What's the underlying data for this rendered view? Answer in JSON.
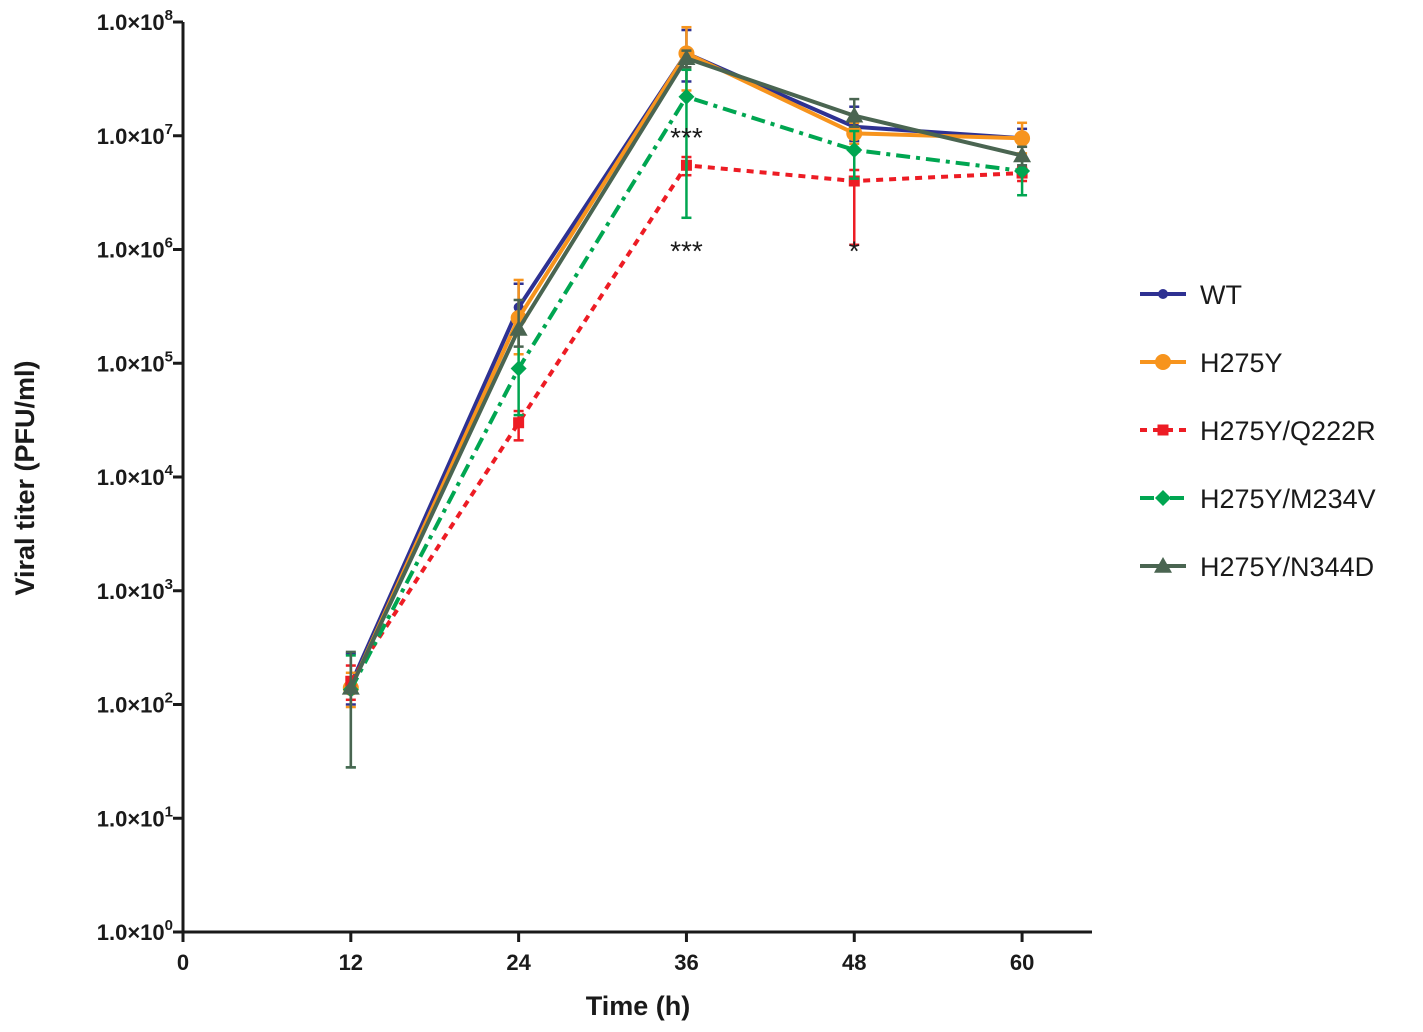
{
  "chart_data": {
    "type": "line",
    "xlabel": "Time (h)",
    "ylabel": "Viral titer (PFU/ml)",
    "x_ticks": [
      0,
      12,
      24,
      36,
      48,
      60
    ],
    "xlim": [
      0,
      65
    ],
    "y_scale": "log",
    "ylim": [
      1,
      100000000
    ],
    "y_ticks": [
      {
        "base": "1.0×10",
        "exp": "0"
      },
      {
        "base": "1.0×10",
        "exp": "1"
      },
      {
        "base": "1.0×10",
        "exp": "2"
      },
      {
        "base": "1.0×10",
        "exp": "3"
      },
      {
        "base": "1.0×10",
        "exp": "4"
      },
      {
        "base": "1.0×10",
        "exp": "5"
      },
      {
        "base": "1.0×10",
        "exp": "6"
      },
      {
        "base": "1.0×10",
        "exp": "7"
      },
      {
        "base": "1.0×10",
        "exp": "8"
      }
    ],
    "grid": false,
    "legend_position": "right",
    "x": [
      12,
      24,
      36,
      48,
      60
    ],
    "series": [
      {
        "name": "WT",
        "color": "#2e3192",
        "dash": "solid",
        "marker": "circle-small",
        "values": [
          150,
          310000,
          53000000,
          12000000,
          9500000
        ],
        "err_high": [
          280,
          500000,
          85000000,
          18000000,
          11500000
        ],
        "err_low": [
          100,
          180000,
          30000000,
          9000000,
          8000000
        ]
      },
      {
        "name": "H275Y",
        "color": "#f7941d",
        "dash": "solid",
        "marker": "circle",
        "values": [
          140,
          250000,
          53000000,
          10500000,
          9500000
        ],
        "err_high": [
          190,
          540000,
          90000000,
          13000000,
          13000000
        ],
        "err_low": [
          95,
          120000,
          25000000,
          8500000,
          7000000
        ]
      },
      {
        "name": "H275Y/Q222R",
        "color": "#ed1c24",
        "dash": "dot",
        "marker": "square",
        "values": [
          160,
          30000,
          5500000,
          4000000,
          4700000
        ],
        "err_high": [
          220,
          38000,
          6500000,
          5000000,
          5300000
        ],
        "err_low": [
          110,
          21000,
          4500000,
          1100000,
          4000000
        ]
      },
      {
        "name": "H275Y/M234V",
        "color": "#00a651",
        "dash": "dashdot",
        "marker": "diamond",
        "values": [
          135,
          90000,
          22000000,
          7500000,
          4900000
        ],
        "err_high": [
          270,
          190000,
          38000000,
          11000000,
          6200000
        ],
        "err_low": [
          28,
          35000,
          1900000,
          4200000,
          3000000
        ]
      },
      {
        "name": "H275Y/N344D",
        "color": "#4a6551",
        "dash": "solid",
        "marker": "triangle",
        "values": [
          140,
          200000,
          48000000,
          15000000,
          6700000
        ],
        "err_high": [
          290,
          360000,
          56000000,
          21000000,
          8000000
        ],
        "err_low": [
          28,
          140000,
          40000000,
          12000000,
          5500000
        ]
      }
    ],
    "annotations": [
      {
        "text": "***",
        "x": 36,
        "y": 11500000
      },
      {
        "text": "***",
        "x": 36,
        "y": 1150000
      },
      {
        "text": "*",
        "x": 48,
        "y": 1150000
      }
    ]
  }
}
